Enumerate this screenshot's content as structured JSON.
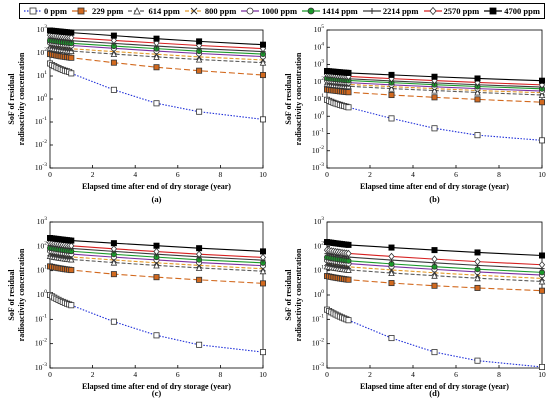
{
  "legend": [
    {
      "label": "0 ppm",
      "color": "#1f2fd9",
      "dash": "1.5,1.5",
      "marker": "square-open"
    },
    {
      "label": "229 ppm",
      "color": "#d2691e",
      "dash": "6,3",
      "marker": "square-filled"
    },
    {
      "label": "614 ppm",
      "color": "#5a5a5a",
      "dash": "4,2",
      "marker": "triangle-open"
    },
    {
      "label": "800 ppm",
      "color": "#e39a2a",
      "dash": "4,2",
      "marker": "x"
    },
    {
      "label": "1000 ppm",
      "color": "#7b2fa0",
      "dash": "",
      "marker": "circle-open"
    },
    {
      "label": "1414 ppm",
      "color": "#1a9a2a",
      "dash": "",
      "marker": "circle-filled"
    },
    {
      "label": "2214 ppm",
      "color": "#3a3a3a",
      "dash": "",
      "marker": "plus"
    },
    {
      "label": "2570 ppm",
      "color": "#d62020",
      "dash": "",
      "marker": "diamond-open"
    },
    {
      "label": "4700 ppm",
      "color": "#000000",
      "dash": "",
      "marker": "square-filled-black"
    }
  ],
  "chart_data": [
    {
      "type": "line",
      "panel_label": "(a)",
      "xlabel": "Elapsed time after end of dry storage (year)",
      "ylabel": "SoF of residual radioactivity concentration",
      "xlim": [
        0,
        10
      ],
      "ylim": [
        0.001,
        1000
      ],
      "y_scale": "log",
      "x_ticks": [
        "0",
        "2",
        "4",
        "6",
        "8",
        "10"
      ],
      "y_ticks": [
        "10-3",
        "10-2",
        "10-1",
        "100",
        "101",
        "102",
        "103"
      ],
      "x": [
        0,
        0.1,
        0.2,
        0.3,
        0.4,
        0.5,
        0.6,
        0.7,
        0.8,
        0.9,
        1,
        3,
        5,
        7,
        10
      ],
      "series": [
        {
          "name": "0 ppm",
          "values": [
            35,
            30,
            27,
            24,
            22,
            20,
            18.5,
            17,
            16,
            15,
            13,
            2.5,
            0.65,
            0.28,
            0.13
          ]
        },
        {
          "name": "229 ppm",
          "values": [
            90,
            85,
            82,
            78,
            75,
            72,
            70,
            68,
            66,
            64,
            62,
            38,
            24,
            17,
            11
          ]
        },
        {
          "name": "614 ppm",
          "values": [
            170,
            163,
            157,
            151,
            146,
            141,
            137,
            133,
            129,
            126,
            122,
            90,
            68,
            52,
            38
          ]
        },
        {
          "name": "800 ppm",
          "values": [
            210,
            202,
            195,
            188,
            182,
            176,
            171,
            166,
            161,
            157,
            153,
            115,
            88,
            68,
            50
          ]
        },
        {
          "name": "1000 ppm",
          "values": [
            280,
            270,
            262,
            254,
            247,
            240,
            234,
            228,
            222,
            217,
            212,
            160,
            122,
            95,
            70
          ]
        },
        {
          "name": "1414 ppm",
          "values": [
            350,
            338,
            328,
            318,
            309,
            300,
            292,
            285,
            278,
            271,
            265,
            200,
            155,
            120,
            90
          ]
        },
        {
          "name": "2214 ppm",
          "values": [
            450,
            435,
            422,
            410,
            398,
            387,
            377,
            367,
            358,
            350,
            342,
            262,
            200,
            156,
            115
          ]
        },
        {
          "name": "2570 ppm",
          "values": [
            600,
            580,
            564,
            548,
            533,
            519,
            506,
            494,
            482,
            471,
            460,
            352,
            272,
            212,
            155
          ]
        },
        {
          "name": "4700 ppm",
          "values": [
            950,
            930,
            910,
            890,
            870,
            852,
            834,
            817,
            800,
            785,
            770,
            570,
            420,
            320,
            230
          ]
        }
      ]
    },
    {
      "type": "line",
      "panel_label": "(b)",
      "xlabel": "Elapsed time after end of dry storage (year)",
      "ylabel": "SoF of residual radioactivity concentration",
      "xlim": [
        0,
        10
      ],
      "ylim": [
        0.001,
        100000
      ],
      "y_scale": "log",
      "x_ticks": [
        "0",
        "2",
        "4",
        "6",
        "8",
        "10"
      ],
      "y_ticks": [
        "10-3",
        "10-2",
        "10-1",
        "100",
        "101",
        "102",
        "103",
        "104",
        "105"
      ],
      "x": [
        0,
        0.1,
        0.2,
        0.3,
        0.4,
        0.5,
        0.6,
        0.7,
        0.8,
        0.9,
        1,
        3,
        5,
        7,
        10
      ],
      "series": [
        {
          "name": "0 ppm",
          "values": [
            9,
            7.8,
            6.9,
            6.1,
            5.5,
            5,
            4.6,
            4.2,
            3.9,
            3.6,
            3.3,
            0.75,
            0.2,
            0.08,
            0.04
          ]
        },
        {
          "name": "229 ppm",
          "values": [
            35,
            33.5,
            32,
            31,
            30,
            29,
            28,
            27,
            26.2,
            25.4,
            24.7,
            17,
            12.5,
            9.5,
            6.5
          ]
        },
        {
          "name": "614 ppm",
          "values": [
            75,
            72,
            69.5,
            67,
            65,
            63,
            61,
            59.5,
            58,
            56.5,
            55,
            40,
            31,
            24,
            17
          ]
        },
        {
          "name": "800 ppm",
          "values": [
            95,
            91.5,
            88.5,
            85.5,
            83,
            80.5,
            78,
            76,
            74,
            72,
            70,
            52,
            40,
            31,
            23
          ]
        },
        {
          "name": "1000 ppm",
          "values": [
            120,
            116,
            112,
            108.5,
            105,
            102,
            99,
            96.5,
            94,
            91.5,
            89,
            66,
            51,
            40,
            29
          ]
        },
        {
          "name": "1414 ppm",
          "values": [
            160,
            154,
            149,
            144,
            140,
            136,
            132,
            128.5,
            125,
            122,
            119,
            89,
            68,
            53,
            39
          ]
        },
        {
          "name": "2214 ppm",
          "values": [
            200,
            193,
            187,
            181,
            175,
            170,
            165,
            161,
            157,
            153,
            149,
            112,
            86,
            67,
            49
          ]
        },
        {
          "name": "2570 ppm",
          "values": [
            270,
            261,
            253,
            245,
            237,
            230,
            224,
            218,
            212,
            207,
            202,
            152,
            117,
            91,
            66
          ]
        },
        {
          "name": "4700 ppm",
          "values": [
            420,
            408,
            397,
            386,
            376,
            366,
            357,
            348,
            340,
            332,
            325,
            250,
            195,
            155,
            115
          ]
        }
      ]
    },
    {
      "type": "line",
      "panel_label": "(c)",
      "xlabel": "Elapsed time after end of dry storage (year)",
      "ylabel": "SoF of residual radioactivity concentration",
      "xlim": [
        0,
        10
      ],
      "ylim": [
        0.001,
        1000
      ],
      "y_scale": "log",
      "x_ticks": [
        "0",
        "2",
        "4",
        "6",
        "8",
        "10"
      ],
      "y_ticks": [
        "10-3",
        "10-2",
        "10-1",
        "100",
        "101",
        "102",
        "103"
      ],
      "x": [
        0,
        0.1,
        0.2,
        0.3,
        0.4,
        0.5,
        0.6,
        0.7,
        0.8,
        0.9,
        1,
        3,
        5,
        7,
        10
      ],
      "series": [
        {
          "name": "0 ppm",
          "values": [
            1,
            0.88,
            0.78,
            0.7,
            0.63,
            0.57,
            0.52,
            0.48,
            0.44,
            0.41,
            0.38,
            0.08,
            0.022,
            0.009,
            0.0045
          ]
        },
        {
          "name": "229 ppm",
          "values": [
            15,
            14.3,
            13.7,
            13.2,
            12.7,
            12.3,
            11.9,
            11.5,
            11.2,
            10.9,
            10.6,
            7.2,
            5.4,
            4.2,
            3
          ]
        },
        {
          "name": "614 ppm",
          "values": [
            40,
            38.5,
            37,
            35.7,
            34.5,
            33.4,
            32.4,
            31.4,
            30.5,
            29.7,
            28.9,
            21.5,
            16.5,
            13,
            9.5
          ]
        },
        {
          "name": "800 ppm",
          "values": [
            50,
            48.2,
            46.5,
            45,
            43.5,
            42.2,
            41,
            39.8,
            38.7,
            37.7,
            36.7,
            27.5,
            21,
            16.5,
            12
          ]
        },
        {
          "name": "1000 ppm",
          "values": [
            65,
            62.7,
            60.6,
            58.6,
            56.8,
            55.1,
            53.5,
            52,
            50.6,
            49.3,
            48,
            36,
            27.5,
            21.5,
            16
          ]
        },
        {
          "name": "1414 ppm",
          "values": [
            85,
            82,
            79.3,
            76.7,
            74.3,
            72,
            70,
            68,
            66.2,
            64.5,
            62.8,
            47,
            36,
            28,
            21
          ]
        },
        {
          "name": "2214 ppm",
          "values": [
            110,
            106.3,
            102.9,
            99.7,
            96.7,
            93.9,
            91.3,
            88.8,
            86.5,
            84.3,
            82.2,
            62,
            47.5,
            37,
            27
          ]
        },
        {
          "name": "2570 ppm",
          "values": [
            140,
            135.3,
            131,
            127,
            123.2,
            119.7,
            116.4,
            113.3,
            110.4,
            107.6,
            105,
            79,
            61,
            47.5,
            35
          ]
        },
        {
          "name": "4700 ppm",
          "values": [
            220,
            214,
            208.5,
            203,
            198,
            193,
            188.5,
            184,
            180,
            176,
            172,
            135,
            106,
            84,
            62
          ]
        }
      ]
    },
    {
      "type": "line",
      "panel_label": "(d)",
      "xlabel": "Elapsed time after end of dry storage (year)",
      "ylabel": "SoF of residual radioactivity concentration",
      "xlim": [
        0,
        10
      ],
      "ylim": [
        0.001,
        1000
      ],
      "y_scale": "log",
      "x_ticks": [
        "0",
        "2",
        "4",
        "6",
        "8",
        "10"
      ],
      "y_ticks": [
        "10-3",
        "10-2",
        "10-1",
        "100",
        "101",
        "102",
        "103"
      ],
      "x": [
        0,
        0.1,
        0.2,
        0.3,
        0.4,
        0.5,
        0.6,
        0.7,
        0.8,
        0.9,
        1,
        3,
        5,
        7,
        10
      ],
      "series": [
        {
          "name": "0 ppm",
          "values": [
            0.25,
            0.22,
            0.195,
            0.175,
            0.158,
            0.143,
            0.13,
            0.119,
            0.109,
            0.1,
            0.092,
            0.017,
            0.0045,
            0.002,
            0.0011
          ]
        },
        {
          "name": "229 ppm",
          "values": [
            6,
            5.75,
            5.52,
            5.31,
            5.12,
            4.95,
            4.79,
            4.64,
            4.5,
            4.37,
            4.25,
            3.1,
            2.4,
            1.95,
            1.5
          ]
        },
        {
          "name": "614 ppm",
          "values": [
            15,
            14.4,
            13.9,
            13.4,
            12.95,
            12.5,
            12.1,
            11.75,
            11.4,
            11.1,
            10.8,
            8,
            6.2,
            4.9,
            3.6
          ]
        },
        {
          "name": "800 ppm",
          "values": [
            20,
            19.2,
            18.5,
            17.85,
            17.25,
            16.7,
            16.2,
            15.7,
            15.25,
            14.8,
            14.4,
            10.7,
            8.2,
            6.5,
            4.8
          ]
        },
        {
          "name": "1000 ppm",
          "values": [
            27,
            26,
            25.1,
            24.25,
            23.45,
            22.7,
            22,
            21.35,
            20.75,
            20.15,
            19.6,
            14.7,
            11.3,
            8.9,
            6.6
          ]
        },
        {
          "name": "1414 ppm",
          "values": [
            35,
            33.7,
            32.5,
            31.4,
            30.35,
            29.4,
            28.5,
            27.65,
            26.85,
            26.1,
            25.4,
            19,
            14.6,
            11.5,
            8.5
          ]
        },
        {
          "name": "2214 ppm",
          "values": [
            50,
            48.2,
            46.5,
            44.9,
            43.4,
            42,
            40.7,
            39.5,
            38.35,
            37.25,
            36.2,
            27.2,
            21,
            16.5,
            12.2
          ]
        },
        {
          "name": "2570 ppm",
          "values": [
            70,
            67.5,
            65.2,
            63,
            60.9,
            59,
            57.2,
            55.5,
            53.9,
            52.4,
            51,
            38.5,
            29.8,
            23.5,
            17.5
          ]
        },
        {
          "name": "4700 ppm",
          "values": [
            150,
            145.5,
            141.3,
            137.3,
            133.5,
            130,
            126.6,
            123.4,
            120.3,
            117.4,
            114.6,
            89,
            70,
            56,
            42
          ]
        }
      ]
    }
  ]
}
